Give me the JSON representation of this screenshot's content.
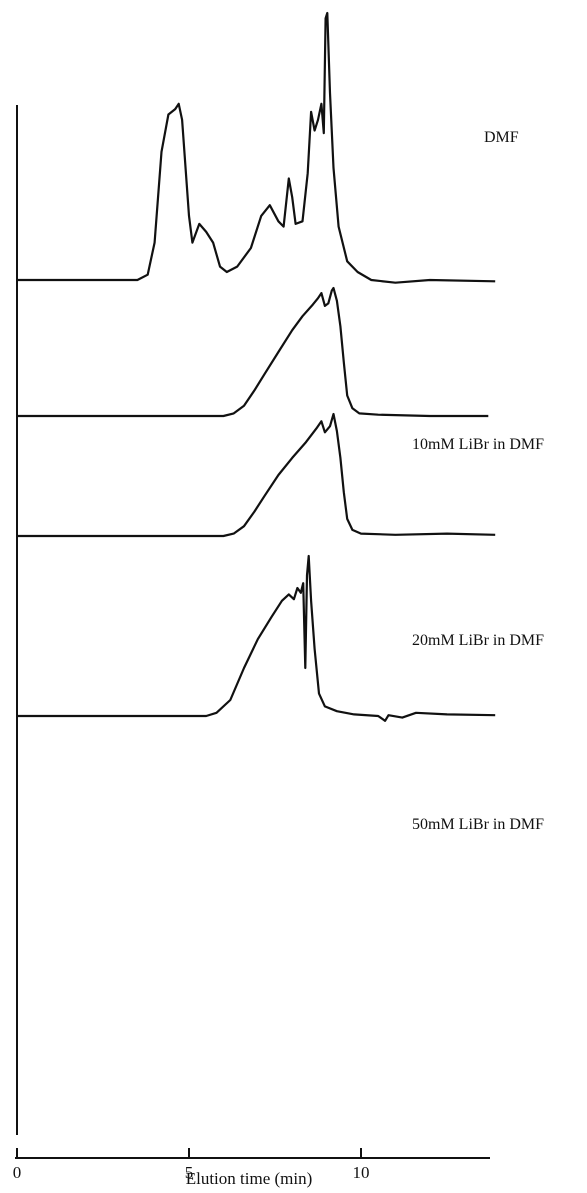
{
  "chart_data": {
    "type": "line",
    "xlabel": "Elution time (min)",
    "ylabel": "",
    "xlim": [
      0,
      13.9
    ],
    "x_ticks": [
      "0",
      "5",
      "10"
    ],
    "x_tick_values": [
      0,
      5,
      10
    ],
    "grid": false,
    "legend": "none",
    "line_color": "#111111",
    "series": [
      {
        "name": "DMF",
        "peak": 1.0,
        "points": [
          [
            0,
            0
          ],
          [
            3.5,
            0
          ],
          [
            3.8,
            0.02
          ],
          [
            4.0,
            0.14
          ],
          [
            4.2,
            0.48
          ],
          [
            4.4,
            0.62
          ],
          [
            4.6,
            0.64
          ],
          [
            4.7,
            0.66
          ],
          [
            4.8,
            0.6
          ],
          [
            5.0,
            0.24
          ],
          [
            5.1,
            0.14
          ],
          [
            5.3,
            0.21
          ],
          [
            5.5,
            0.18
          ],
          [
            5.7,
            0.14
          ],
          [
            5.9,
            0.05
          ],
          [
            6.1,
            0.03
          ],
          [
            6.4,
            0.05
          ],
          [
            6.8,
            0.12
          ],
          [
            7.1,
            0.24
          ],
          [
            7.35,
            0.28
          ],
          [
            7.6,
            0.22
          ],
          [
            7.75,
            0.2
          ],
          [
            7.9,
            0.38
          ],
          [
            8.0,
            0.31
          ],
          [
            8.1,
            0.21
          ],
          [
            8.3,
            0.22
          ],
          [
            8.45,
            0.4
          ],
          [
            8.55,
            0.63
          ],
          [
            8.65,
            0.56
          ],
          [
            8.75,
            0.6
          ],
          [
            8.85,
            0.66
          ],
          [
            8.92,
            0.55
          ],
          [
            8.97,
            0.98
          ],
          [
            9.02,
            1.0
          ],
          [
            9.1,
            0.7
          ],
          [
            9.2,
            0.42
          ],
          [
            9.35,
            0.2
          ],
          [
            9.6,
            0.07
          ],
          [
            9.9,
            0.03
          ],
          [
            10.3,
            0
          ],
          [
            11.0,
            -0.01
          ],
          [
            12.0,
            0
          ],
          [
            13.9,
            -0.005
          ]
        ]
      },
      {
        "name": "10mM LiBr in DMF",
        "peak": 1.0,
        "points": [
          [
            0,
            0
          ],
          [
            6.0,
            0
          ],
          [
            6.3,
            0.02
          ],
          [
            6.6,
            0.08
          ],
          [
            6.9,
            0.2
          ],
          [
            7.2,
            0.33
          ],
          [
            7.6,
            0.5
          ],
          [
            8.0,
            0.67
          ],
          [
            8.3,
            0.78
          ],
          [
            8.6,
            0.87
          ],
          [
            8.75,
            0.92
          ],
          [
            8.85,
            0.96
          ],
          [
            8.95,
            0.86
          ],
          [
            9.05,
            0.88
          ],
          [
            9.15,
            0.98
          ],
          [
            9.2,
            1.0
          ],
          [
            9.3,
            0.9
          ],
          [
            9.4,
            0.7
          ],
          [
            9.5,
            0.42
          ],
          [
            9.6,
            0.16
          ],
          [
            9.75,
            0.06
          ],
          [
            9.95,
            0.02
          ],
          [
            10.5,
            0.01
          ],
          [
            12.0,
            0
          ],
          [
            13.7,
            0
          ]
        ]
      },
      {
        "name": "20mM LiBr in DMF",
        "peak": 1.0,
        "points": [
          [
            0,
            0
          ],
          [
            6.0,
            0
          ],
          [
            6.3,
            0.02
          ],
          [
            6.6,
            0.08
          ],
          [
            6.9,
            0.2
          ],
          [
            7.2,
            0.33
          ],
          [
            7.6,
            0.5
          ],
          [
            8.0,
            0.64
          ],
          [
            8.4,
            0.77
          ],
          [
            8.7,
            0.88
          ],
          [
            8.85,
            0.94
          ],
          [
            8.95,
            0.85
          ],
          [
            9.1,
            0.9
          ],
          [
            9.2,
            1.0
          ],
          [
            9.3,
            0.86
          ],
          [
            9.4,
            0.64
          ],
          [
            9.5,
            0.36
          ],
          [
            9.6,
            0.14
          ],
          [
            9.75,
            0.05
          ],
          [
            10.0,
            0.02
          ],
          [
            11.0,
            0.01
          ],
          [
            12.5,
            0.02
          ],
          [
            13.9,
            0.01
          ]
        ]
      },
      {
        "name": "50mM LiBr in DMF",
        "peak": 1.0,
        "points": [
          [
            0,
            0
          ],
          [
            5.5,
            0
          ],
          [
            5.8,
            0.02
          ],
          [
            6.2,
            0.1
          ],
          [
            6.6,
            0.3
          ],
          [
            7.0,
            0.48
          ],
          [
            7.4,
            0.62
          ],
          [
            7.7,
            0.72
          ],
          [
            7.9,
            0.76
          ],
          [
            8.05,
            0.73
          ],
          [
            8.15,
            0.8
          ],
          [
            8.25,
            0.77
          ],
          [
            8.32,
            0.83
          ],
          [
            8.38,
            0.3
          ],
          [
            8.43,
            0.88
          ],
          [
            8.48,
            1.0
          ],
          [
            8.55,
            0.72
          ],
          [
            8.65,
            0.42
          ],
          [
            8.78,
            0.14
          ],
          [
            8.95,
            0.06
          ],
          [
            9.3,
            0.03
          ],
          [
            9.8,
            0.01
          ],
          [
            10.5,
            0
          ],
          [
            10.7,
            -0.03
          ],
          [
            10.8,
            0.005
          ],
          [
            11.2,
            -0.01
          ],
          [
            11.6,
            0.02
          ],
          [
            12.5,
            0.01
          ],
          [
            13.9,
            0.005
          ]
        ]
      }
    ]
  }
}
